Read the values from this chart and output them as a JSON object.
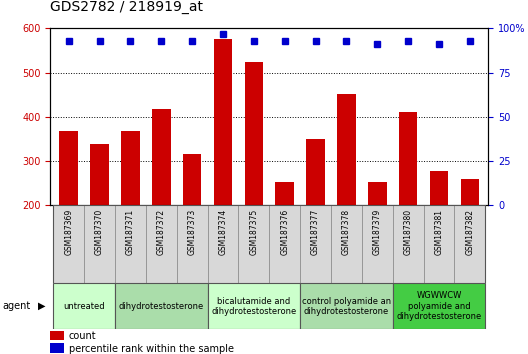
{
  "title": "GDS2782 / 218919_at",
  "samples": [
    "GSM187369",
    "GSM187370",
    "GSM187371",
    "GSM187372",
    "GSM187373",
    "GSM187374",
    "GSM187375",
    "GSM187376",
    "GSM187377",
    "GSM187378",
    "GSM187379",
    "GSM187380",
    "GSM187381",
    "GSM187382"
  ],
  "counts": [
    367,
    338,
    368,
    418,
    316,
    575,
    525,
    252,
    350,
    452,
    252,
    410,
    277,
    260
  ],
  "percentiles": [
    93,
    93,
    93,
    93,
    93,
    97,
    93,
    93,
    93,
    93,
    91,
    93,
    91,
    93
  ],
  "bar_color": "#cc0000",
  "dot_color": "#0000cc",
  "ylim_left": [
    200,
    600
  ],
  "ylim_right": [
    0,
    100
  ],
  "yticks_left": [
    200,
    300,
    400,
    500,
    600
  ],
  "ytick_labels_left": [
    "200",
    "300",
    "400",
    "500",
    "600"
  ],
  "yticks_right": [
    0,
    25,
    50,
    75,
    100
  ],
  "ytick_labels_right": [
    "0",
    "25",
    "50",
    "75",
    "100%"
  ],
  "groups": [
    {
      "label": "untreated",
      "indices": [
        0,
        1
      ],
      "color": "#ccffcc"
    },
    {
      "label": "dihydrotestosterone",
      "indices": [
        2,
        3,
        4
      ],
      "color": "#aaddaa"
    },
    {
      "label": "bicalutamide and\ndihydrotestosterone",
      "indices": [
        5,
        6,
        7
      ],
      "color": "#ccffcc"
    },
    {
      "label": "control polyamide an\ndihydrotestosterone",
      "indices": [
        8,
        9,
        10
      ],
      "color": "#aaddaa"
    },
    {
      "label": "WGWWCW\npolyamide and\ndihydrotestosterone",
      "indices": [
        11,
        12,
        13
      ],
      "color": "#44cc44"
    }
  ],
  "agent_label": "agent",
  "legend_count_label": "count",
  "legend_percentile_label": "percentile rank within the sample",
  "title_fontsize": 10,
  "tick_fontsize": 7,
  "sample_fontsize": 5.5,
  "group_fontsize": 6,
  "legend_fontsize": 7,
  "axis_label_color_left": "#cc0000",
  "axis_label_color_right": "#0000cc",
  "background_color": "#ffffff",
  "sample_cell_color": "#d8d8d8",
  "bar_width": 0.6
}
